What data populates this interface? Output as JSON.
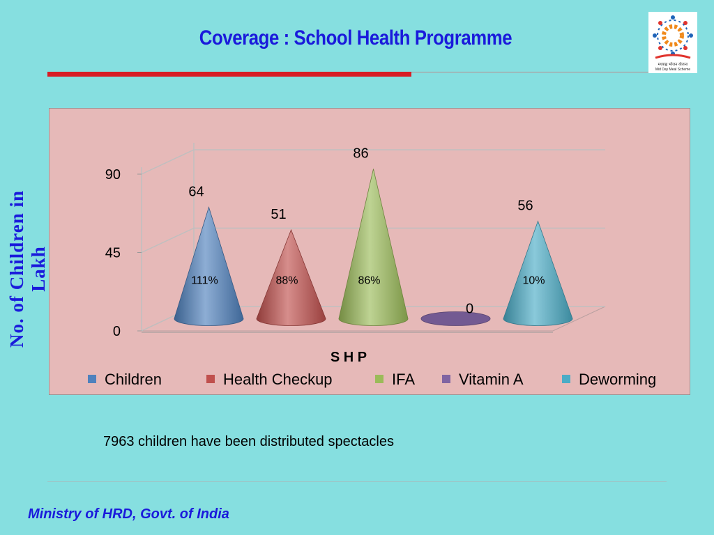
{
  "slide": {
    "title": "Coverage : School Health Programme",
    "note": "7963 children have been distributed spectacles",
    "footer": "Ministry of HRD, Govt. of India",
    "logo_text": "मध्याह्न भोजन योजना",
    "logo_subtext": "Mid Day Meal Scheme"
  },
  "chart_data": {
    "type": "bar",
    "style": "3d-cone",
    "title": "",
    "xlabel": "S H P",
    "ylabel": "No. of Children in Lakh",
    "ylim": [
      0,
      90
    ],
    "yticks": [
      0,
      45,
      90
    ],
    "grid": true,
    "legend_position": "bottom",
    "series": [
      {
        "name": "Children",
        "value": 64,
        "pct_label": "111%",
        "color": "#4f81bd"
      },
      {
        "name": "Health Checkup",
        "value": 51,
        "pct_label": "88%",
        "color": "#c0504d"
      },
      {
        "name": "IFA",
        "value": 86,
        "pct_label": "86%",
        "color": "#9bbb59"
      },
      {
        "name": "Vitamin A",
        "value": 0,
        "pct_label": "",
        "color": "#8064a2"
      },
      {
        "name": "Deworming",
        "value": 56,
        "pct_label": "10%",
        "color": "#4bacc6"
      }
    ]
  }
}
